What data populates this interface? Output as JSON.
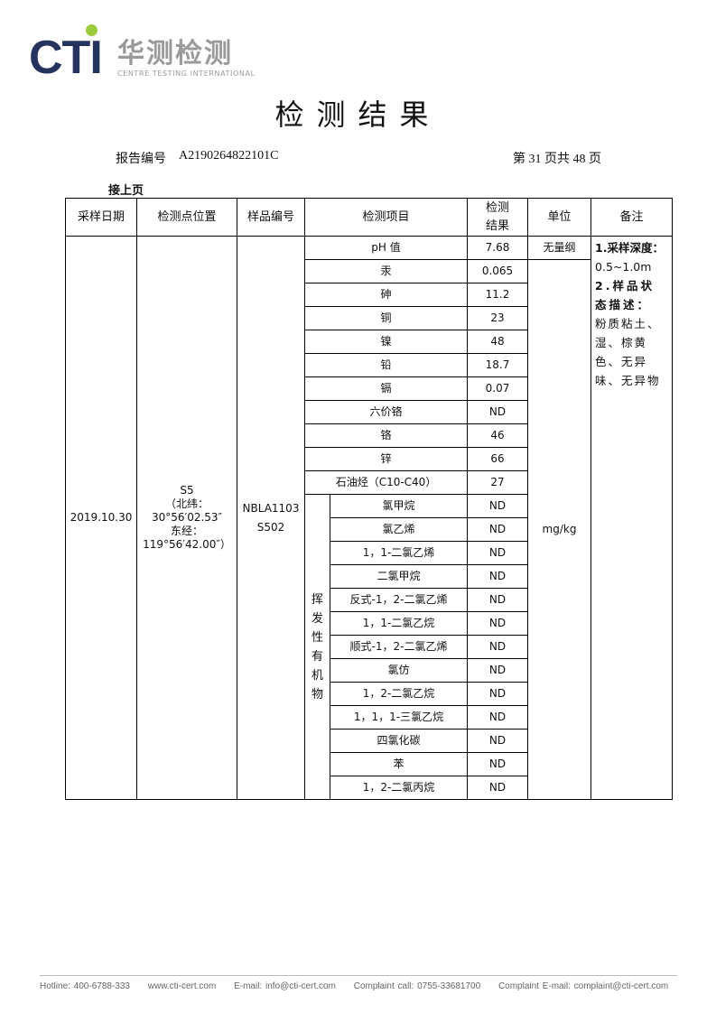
{
  "logo": {
    "brand": "CTI",
    "cn": "华测检测",
    "en": "CENTRE TESTING INTERNATIONAL"
  },
  "title": "检测结果",
  "report_label": "报告编号",
  "report_no": "A2190264822101C",
  "page_info": "第 31 页共 48 页",
  "continued": "接上页",
  "table": {
    "headers": [
      "采样日期",
      "检测点位置",
      "样品编号",
      "检测项目",
      "检测结果",
      "单位",
      "备注"
    ],
    "date": "2019.10.30",
    "location": [
      "S5",
      "（北纬：",
      "30°56′02.53″",
      "东经：",
      "119°56′42.00″）"
    ],
    "sample_id": [
      "NBLA1103",
      "S502"
    ],
    "group_label": "挥发性有机物",
    "unit_ph": "无量纲",
    "unit_other": "mg/kg",
    "remark": {
      "l1": "1.采样深度：",
      "l2": "0.5~1.0m",
      "l3": "2.样品状态描述：",
      "l4": "粉质粘土、湿、棕黄色、无异味、无异物"
    },
    "rows": [
      {
        "item": "pH 值",
        "result": "7.68"
      },
      {
        "item": "汞",
        "result": "0.065"
      },
      {
        "item": "砷",
        "result": "11.2"
      },
      {
        "item": "铜",
        "result": "23"
      },
      {
        "item": "镍",
        "result": "48"
      },
      {
        "item": "铅",
        "result": "18.7"
      },
      {
        "item": "镉",
        "result": "0.07"
      },
      {
        "item": "六价铬",
        "result": "ND"
      },
      {
        "item": "铬",
        "result": "46"
      },
      {
        "item": "锌",
        "result": "66"
      },
      {
        "item": "石油烃（C10-C40）",
        "result": "27"
      }
    ],
    "voc_rows": [
      {
        "item": "氯甲烷",
        "result": "ND"
      },
      {
        "item": "氯乙烯",
        "result": "ND"
      },
      {
        "item": "1，1-二氯乙烯",
        "result": "ND"
      },
      {
        "item": "二氯甲烷",
        "result": "ND"
      },
      {
        "item": "反式-1，2-二氯乙烯",
        "result": "ND"
      },
      {
        "item": "1，1-二氯乙烷",
        "result": "ND"
      },
      {
        "item": "顺式-1，2-二氯乙烯",
        "result": "ND"
      },
      {
        "item": "氯仿",
        "result": "ND"
      },
      {
        "item": "1，2-二氯乙烷",
        "result": "ND"
      },
      {
        "item": "1，1，1-三氯乙烷",
        "result": "ND"
      },
      {
        "item": "四氯化碳",
        "result": "ND"
      },
      {
        "item": "苯",
        "result": "ND"
      },
      {
        "item": "1，2-二氯丙烷",
        "result": "ND"
      }
    ]
  },
  "footer": [
    "Hotline: 400-6788-333",
    "www.cti-cert.com",
    "E-mail: info@cti-cert.com",
    "Complaint call: 0755-33681700",
    "Complaint E-mail: complaint@cti-cert.com"
  ]
}
